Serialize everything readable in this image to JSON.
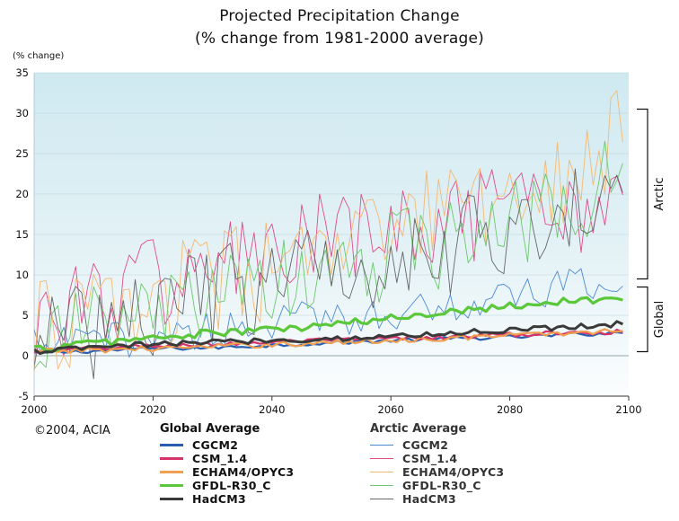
{
  "chart_data": {
    "type": "line",
    "title": "Projected Precipitation Change",
    "subtitle": "(% change from 1981-2000 average)",
    "ylabel": "(% change)",
    "xlabel": "",
    "xlim": [
      2000,
      2100
    ],
    "ylim": [
      -5,
      35
    ],
    "x_ticks": [
      2000,
      2020,
      2040,
      2060,
      2080,
      2100
    ],
    "y_ticks": [
      -5,
      0,
      5,
      10,
      15,
      20,
      25,
      30,
      35
    ],
    "brackets": [
      {
        "label": "Arctic",
        "from": 9.5,
        "to": 30.5
      },
      {
        "label": "Global",
        "from": 0.5,
        "to": 8.5
      }
    ],
    "series": [
      {
        "name": "CGCM2",
        "group": "Global Average",
        "color": "#2a5db0",
        "width": 2.2,
        "anchors": [
          [
            2000,
            0.3
          ],
          [
            2010,
            0.6
          ],
          [
            2020,
            0.9
          ],
          [
            2030,
            1.0
          ],
          [
            2040,
            1.3
          ],
          [
            2050,
            1.6
          ],
          [
            2060,
            1.9
          ],
          [
            2070,
            2.1
          ],
          [
            2080,
            2.3
          ],
          [
            2090,
            2.6
          ],
          [
            2100,
            2.9
          ]
        ],
        "noise": 0.25
      },
      {
        "name": "CSM_1.4",
        "group": "Global Average",
        "color": "#d6336c",
        "width": 2.2,
        "anchors": [
          [
            2000,
            0.4
          ],
          [
            2010,
            0.9
          ],
          [
            2020,
            1.2
          ],
          [
            2030,
            1.4
          ],
          [
            2040,
            1.7
          ],
          [
            2050,
            1.9
          ],
          [
            2060,
            2.1
          ],
          [
            2070,
            2.3
          ],
          [
            2080,
            2.6
          ],
          [
            2090,
            2.8
          ],
          [
            2100,
            3.0
          ]
        ],
        "noise": 0.3
      },
      {
        "name": "ECHAM4/OPYC3",
        "group": "Global Average",
        "color": "#f0a050",
        "width": 2.2,
        "anchors": [
          [
            2000,
            0.5
          ],
          [
            2010,
            0.7
          ],
          [
            2020,
            0.9
          ],
          [
            2030,
            1.1
          ],
          [
            2040,
            1.4
          ],
          [
            2050,
            1.6
          ],
          [
            2060,
            1.9
          ],
          [
            2070,
            2.2
          ],
          [
            2080,
            2.5
          ],
          [
            2090,
            2.8
          ],
          [
            2100,
            3.2
          ]
        ],
        "noise": 0.35
      },
      {
        "name": "GFDL-R30_C",
        "group": "Global Average",
        "color": "#5ac83a",
        "width": 3.2,
        "anchors": [
          [
            2000,
            0.8
          ],
          [
            2010,
            1.6
          ],
          [
            2020,
            2.2
          ],
          [
            2030,
            2.8
          ],
          [
            2040,
            3.2
          ],
          [
            2050,
            3.8
          ],
          [
            2060,
            4.6
          ],
          [
            2070,
            5.6
          ],
          [
            2080,
            6.2
          ],
          [
            2090,
            6.8
          ],
          [
            2100,
            7.0
          ]
        ],
        "noise": 0.5
      },
      {
        "name": "HadCM3",
        "group": "Global Average",
        "color": "#3a3a3a",
        "width": 3.0,
        "anchors": [
          [
            2000,
            0.5
          ],
          [
            2010,
            1.0
          ],
          [
            2020,
            1.4
          ],
          [
            2030,
            1.7
          ],
          [
            2040,
            1.9
          ],
          [
            2050,
            2.1
          ],
          [
            2060,
            2.4
          ],
          [
            2070,
            2.8
          ],
          [
            2080,
            3.2
          ],
          [
            2090,
            3.6
          ],
          [
            2100,
            4.0
          ]
        ],
        "noise": 0.35
      },
      {
        "name": "CGCM2",
        "group": "Arctic Average",
        "color": "#4a8ad4",
        "width": 0.9,
        "anchors": [
          [
            2000,
            1.0
          ],
          [
            2020,
            2.5
          ],
          [
            2040,
            4.0
          ],
          [
            2060,
            5.5
          ],
          [
            2080,
            7.0
          ],
          [
            2090,
            8.5
          ],
          [
            2100,
            9.0
          ]
        ],
        "noise": 1.5
      },
      {
        "name": "CSM_1.4",
        "group": "Arctic Average",
        "color": "#e04c8a",
        "width": 0.9,
        "anchors": [
          [
            2000,
            4.0
          ],
          [
            2010,
            7.0
          ],
          [
            2020,
            9.0
          ],
          [
            2030,
            11.0
          ],
          [
            2040,
            12.5
          ],
          [
            2050,
            14.0
          ],
          [
            2060,
            15.0
          ],
          [
            2070,
            16.0
          ],
          [
            2080,
            17.0
          ],
          [
            2090,
            18.0
          ],
          [
            2100,
            21.0
          ]
        ],
        "noise": 4.0
      },
      {
        "name": "ECHAM4/OPYC3",
        "group": "Arctic Average",
        "color": "#f5b870",
        "width": 0.9,
        "anchors": [
          [
            2000,
            3.0
          ],
          [
            2010,
            5.0
          ],
          [
            2020,
            7.0
          ],
          [
            2030,
            9.0
          ],
          [
            2040,
            10.5
          ],
          [
            2050,
            12.0
          ],
          [
            2060,
            15.0
          ],
          [
            2070,
            18.0
          ],
          [
            2080,
            20.0
          ],
          [
            2090,
            23.0
          ],
          [
            2100,
            27.5
          ]
        ],
        "noise": 4.0
      },
      {
        "name": "GFDL-R30_C",
        "group": "Arctic Average",
        "color": "#6cc86c",
        "width": 0.9,
        "anchors": [
          [
            2000,
            2.0
          ],
          [
            2010,
            3.5
          ],
          [
            2020,
            5.0
          ],
          [
            2030,
            7.0
          ],
          [
            2040,
            8.5
          ],
          [
            2050,
            10.5
          ],
          [
            2060,
            12.5
          ],
          [
            2070,
            14.0
          ],
          [
            2080,
            16.0
          ],
          [
            2090,
            18.0
          ],
          [
            2100,
            25.0
          ]
        ],
        "noise": 3.5
      },
      {
        "name": "HadCM3",
        "group": "Arctic Average",
        "color": "#666666",
        "width": 0.9,
        "anchors": [
          [
            2000,
            2.0
          ],
          [
            2010,
            3.5
          ],
          [
            2020,
            5.5
          ],
          [
            2030,
            7.5
          ],
          [
            2040,
            9.0
          ],
          [
            2050,
            11.0
          ],
          [
            2060,
            12.5
          ],
          [
            2070,
            14.0
          ],
          [
            2080,
            15.5
          ],
          [
            2090,
            17.0
          ],
          [
            2100,
            21.0
          ]
        ],
        "noise": 4.0
      }
    ]
  },
  "legend": {
    "global_title": "Global Average",
    "arctic_title": "Arctic Average",
    "global_items": [
      {
        "label": "CGCM2",
        "color": "#2a5db0"
      },
      {
        "label": "CSM_1.4",
        "color": "#d6336c"
      },
      {
        "label": "ECHAM4/OPYC3",
        "color": "#f0a050"
      },
      {
        "label": "GFDL-R30_C",
        "color": "#5ac83a"
      },
      {
        "label": "HadCM3",
        "color": "#3a3a3a"
      }
    ],
    "arctic_items": [
      {
        "label": "CGCM2",
        "color": "#4a8ad4"
      },
      {
        "label": "CSM_1.4",
        "color": "#e04c8a"
      },
      {
        "label": "ECHAM4/OPYC3",
        "color": "#f5b870"
      },
      {
        "label": "GFDL-R30_C",
        "color": "#6cc86c"
      },
      {
        "label": "HadCM3",
        "color": "#666666"
      }
    ]
  },
  "copyright": "©2004, ACIA"
}
